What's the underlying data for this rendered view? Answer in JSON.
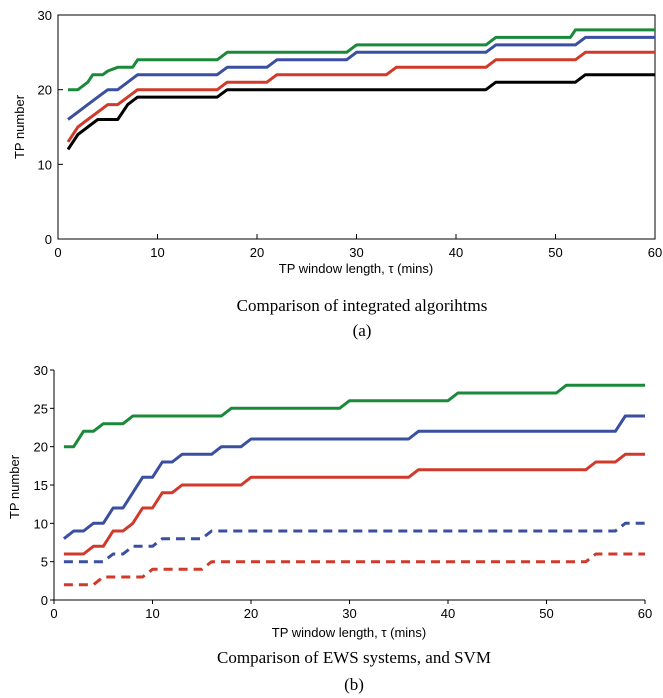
{
  "chart_data": [
    {
      "type": "line",
      "xlabel": "TP window length, τ (mins)",
      "ylabel": "TP number",
      "caption": "Comparison of integrated algorihtms",
      "panel_label": "(a)",
      "xlim": [
        0,
        60
      ],
      "ylim": [
        0,
        30
      ],
      "xticks": [
        "0",
        "10",
        "20",
        "30",
        "40",
        "50",
        "60"
      ],
      "yticks": [
        "0",
        "10",
        "20",
        "30"
      ],
      "grid": false,
      "series": [
        {
          "color": "#1a8a3a",
          "dashed": false,
          "points": [
            [
              1,
              20
            ],
            [
              2,
              20
            ],
            [
              3,
              21
            ],
            [
              3.5,
              22
            ],
            [
              4.5,
              22
            ],
            [
              5,
              22.5
            ],
            [
              6,
              23
            ],
            [
              7.5,
              23
            ],
            [
              8,
              24
            ],
            [
              16,
              24
            ],
            [
              17,
              25
            ],
            [
              29,
              25
            ],
            [
              30,
              26
            ],
            [
              43,
              26
            ],
            [
              44,
              27
            ],
            [
              51.5,
              27
            ],
            [
              52,
              28
            ],
            [
              60,
              28
            ]
          ]
        },
        {
          "color": "#3a4fa0",
          "dashed": false,
          "points": [
            [
              1,
              16
            ],
            [
              2,
              17
            ],
            [
              3,
              18
            ],
            [
              4,
              19
            ],
            [
              5,
              20
            ],
            [
              6,
              20
            ],
            [
              7,
              21
            ],
            [
              8,
              22
            ],
            [
              16,
              22
            ],
            [
              17,
              23
            ],
            [
              21,
              23
            ],
            [
              22,
              24
            ],
            [
              29,
              24
            ],
            [
              30,
              25
            ],
            [
              43,
              25
            ],
            [
              44,
              26
            ],
            [
              52,
              26
            ],
            [
              53,
              27
            ],
            [
              60,
              27
            ]
          ]
        },
        {
          "color": "#d03a2a",
          "dashed": false,
          "points": [
            [
              1,
              13
            ],
            [
              2,
              15
            ],
            [
              3,
              16
            ],
            [
              4,
              17
            ],
            [
              5,
              18
            ],
            [
              6,
              18
            ],
            [
              7,
              19
            ],
            [
              8,
              20
            ],
            [
              16,
              20
            ],
            [
              17,
              21
            ],
            [
              21,
              21
            ],
            [
              22,
              22
            ],
            [
              33,
              22
            ],
            [
              34,
              23
            ],
            [
              43,
              23
            ],
            [
              44,
              24
            ],
            [
              52,
              24
            ],
            [
              53,
              25
            ],
            [
              60,
              25
            ]
          ]
        },
        {
          "color": "#000000",
          "dashed": false,
          "points": [
            [
              1,
              12
            ],
            [
              2,
              14
            ],
            [
              3,
              15
            ],
            [
              4,
              16
            ],
            [
              6,
              16
            ],
            [
              7,
              18
            ],
            [
              8,
              19
            ],
            [
              16,
              19
            ],
            [
              17,
              20
            ],
            [
              43,
              20
            ],
            [
              44,
              21
            ],
            [
              52,
              21
            ],
            [
              53,
              22
            ],
            [
              60,
              22
            ]
          ]
        }
      ]
    },
    {
      "type": "line",
      "xlabel": "TP window length, τ (mins)",
      "ylabel": "TP number",
      "caption": "Comparison of EWS systems, and SVM",
      "panel_label": "(b)",
      "xlim": [
        0,
        60
      ],
      "ylim": [
        0,
        30
      ],
      "xticks": [
        "0",
        "10",
        "20",
        "30",
        "40",
        "50",
        "60"
      ],
      "yticks": [
        "0",
        "5",
        "10",
        "15",
        "20",
        "25",
        "30"
      ],
      "grid": false,
      "series": [
        {
          "color": "#1a8a3a",
          "dashed": false,
          "points": [
            [
              1,
              20
            ],
            [
              2,
              20
            ],
            [
              3,
              22
            ],
            [
              4,
              22
            ],
            [
              5,
              23
            ],
            [
              7,
              23
            ],
            [
              8,
              24
            ],
            [
              17,
              24
            ],
            [
              18,
              25
            ],
            [
              29,
              25
            ],
            [
              30,
              26
            ],
            [
              40,
              26
            ],
            [
              41,
              27
            ],
            [
              51,
              27
            ],
            [
              52,
              28
            ],
            [
              60,
              28
            ]
          ]
        },
        {
          "color": "#3a4fa0",
          "dashed": false,
          "points": [
            [
              1,
              8
            ],
            [
              2,
              9
            ],
            [
              3,
              9
            ],
            [
              4,
              10
            ],
            [
              5,
              10
            ],
            [
              6,
              12
            ],
            [
              7,
              12
            ],
            [
              8,
              14
            ],
            [
              9,
              16
            ],
            [
              10,
              16
            ],
            [
              11,
              18
            ],
            [
              12,
              18
            ],
            [
              13,
              19
            ],
            [
              16,
              19
            ],
            [
              17,
              20
            ],
            [
              19,
              20
            ],
            [
              20,
              21
            ],
            [
              36,
              21
            ],
            [
              37,
              22
            ],
            [
              57,
              22
            ],
            [
              58,
              24
            ],
            [
              60,
              24
            ]
          ]
        },
        {
          "color": "#d03a2a",
          "dashed": false,
          "points": [
            [
              1,
              6
            ],
            [
              3,
              6
            ],
            [
              4,
              7
            ],
            [
              5,
              7
            ],
            [
              6,
              9
            ],
            [
              7,
              9
            ],
            [
              8,
              10
            ],
            [
              9,
              12
            ],
            [
              10,
              12
            ],
            [
              11,
              14
            ],
            [
              12,
              14
            ],
            [
              13,
              15
            ],
            [
              19,
              15
            ],
            [
              20,
              16
            ],
            [
              36,
              16
            ],
            [
              37,
              17
            ],
            [
              54,
              17
            ],
            [
              55,
              18
            ],
            [
              57,
              18
            ],
            [
              58,
              19
            ],
            [
              60,
              19
            ]
          ]
        },
        {
          "color": "#3a4fa0",
          "dashed": true,
          "points": [
            [
              1,
              5
            ],
            [
              5,
              5
            ],
            [
              6,
              6
            ],
            [
              7,
              6
            ],
            [
              8,
              7
            ],
            [
              10,
              7
            ],
            [
              11,
              8
            ],
            [
              15,
              8
            ],
            [
              16,
              9
            ],
            [
              57,
              9
            ],
            [
              58,
              10
            ],
            [
              60,
              10
            ]
          ]
        },
        {
          "color": "#d03a2a",
          "dashed": true,
          "points": [
            [
              1,
              2
            ],
            [
              4,
              2
            ],
            [
              5,
              3
            ],
            [
              9,
              3
            ],
            [
              10,
              4
            ],
            [
              15,
              4
            ],
            [
              16,
              5
            ],
            [
              54,
              5
            ],
            [
              55,
              6
            ],
            [
              60,
              6
            ]
          ]
        }
      ]
    }
  ]
}
